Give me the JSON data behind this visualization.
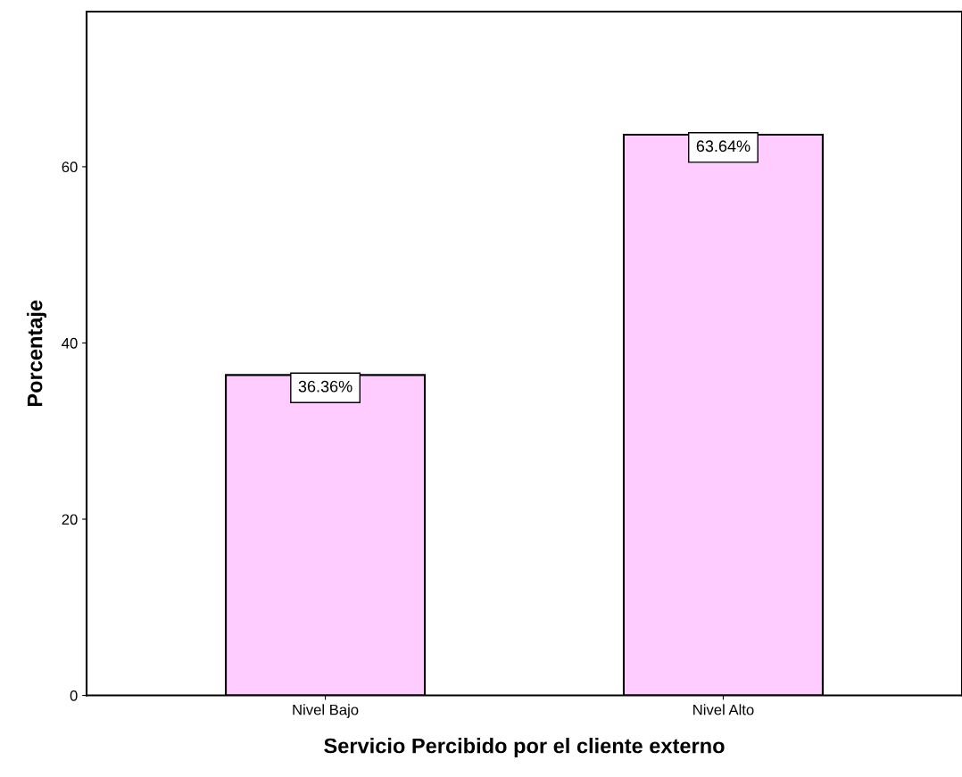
{
  "chart_data": {
    "type": "bar",
    "xlabel": "Servicio Percibido por el cliente externo",
    "ylabel": "Porcentaje",
    "categories": [
      "Nivel Bajo",
      "Nivel Alto"
    ],
    "values": [
      36.36,
      63.64
    ],
    "value_labels": [
      "36.36%",
      "63.64%"
    ],
    "color": "#ffccff",
    "ylim": [
      0,
      77.6
    ],
    "yticks": [
      0,
      20,
      40,
      60
    ],
    "grid": false,
    "legend": false
  }
}
